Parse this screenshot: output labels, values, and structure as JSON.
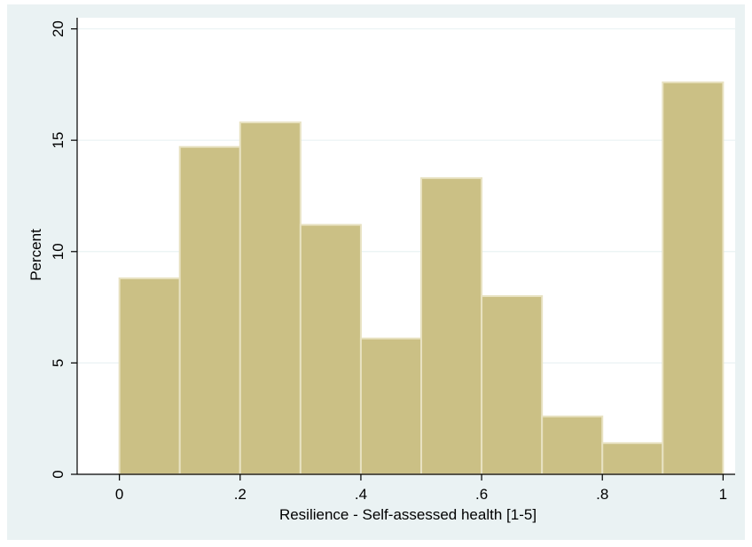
{
  "chart_data": {
    "type": "bar",
    "subtype": "histogram",
    "title": "",
    "xlabel": "Resilience - Self-assessed health [1-5]",
    "ylabel": "Percent",
    "bin_edges": [
      0,
      0.1,
      0.2,
      0.3,
      0.4,
      0.5,
      0.6,
      0.7,
      0.8,
      0.9,
      1.0
    ],
    "values": [
      8.8,
      14.7,
      15.8,
      11.2,
      6.1,
      13.3,
      8.0,
      2.6,
      1.4,
      17.6
    ],
    "xlim": [
      -0.07,
      1.02
    ],
    "ylim": [
      0,
      20.5
    ],
    "xticks": [
      0,
      0.2,
      0.4,
      0.6,
      0.8,
      1
    ],
    "xtick_labels": [
      "0",
      ".2",
      ".4",
      ".6",
      ".8",
      "1"
    ],
    "yticks": [
      0,
      5,
      10,
      15,
      20
    ],
    "ytick_labels": [
      "0",
      "5",
      "10",
      "15",
      "20"
    ],
    "grid": true,
    "legend": "none",
    "colors": {
      "bar_fill": "#cbc085",
      "bar_edge": "#e8e2c2",
      "plot_background": "#ffffff",
      "outer_background": "#eaf2f3",
      "grid": "#eaf2f3",
      "axis": "#000000"
    }
  }
}
